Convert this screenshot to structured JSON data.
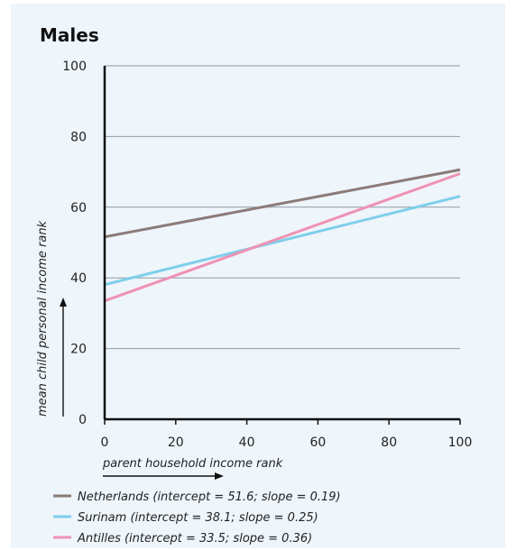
{
  "chart_data": {
    "type": "line",
    "title": "Males",
    "xlabel": "parent household income rank",
    "ylabel": "mean child personal income rank",
    "xlim": [
      0,
      100
    ],
    "ylim": [
      0,
      100
    ],
    "xticks": [
      0,
      20,
      40,
      60,
      80,
      100
    ],
    "yticks": [
      0,
      20,
      40,
      60,
      80,
      100
    ],
    "grid": "horizontal",
    "legend_position": "bottom-left",
    "series": [
      {
        "name": "Netherlands (intercept = 51.6; slope = 0.19)",
        "color": "#8c7b78",
        "x": [
          0,
          100
        ],
        "y": [
          51.6,
          70.6
        ]
      },
      {
        "name": "Surinam (intercept = 38.1; slope = 0.25)",
        "color": "#7fcfeb",
        "x": [
          0,
          100
        ],
        "y": [
          38.1,
          63.1
        ]
      },
      {
        "name": "Antilles (intercept = 33.5; slope = 0.36)",
        "color": "#ef92b3",
        "x": [
          0,
          100
        ],
        "y": [
          33.5,
          69.5
        ]
      }
    ]
  }
}
